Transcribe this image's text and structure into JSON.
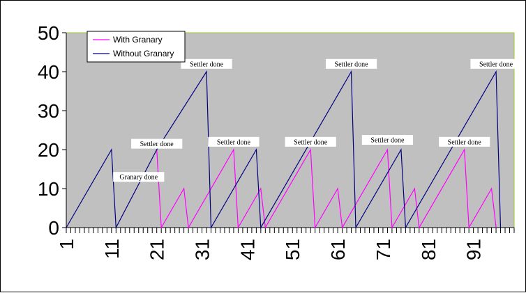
{
  "chart_data": {
    "type": "line",
    "title": "",
    "xlabel": "",
    "ylabel": "",
    "ylim": [
      0,
      50
    ],
    "yticks": [
      0,
      10,
      20,
      30,
      40,
      50
    ],
    "xlim": [
      1,
      100
    ],
    "xtick_labels": [
      "1",
      "11",
      "21",
      "31",
      "41",
      "51",
      "61",
      "71",
      "81",
      "91"
    ],
    "grid": false,
    "legend_position": "top-left",
    "plot_background": "#c0c0c0",
    "plot_border": "#9acd32",
    "series": [
      {
        "name": "With Granary",
        "color": "#ff00ff",
        "points": [
          [
            21,
            20
          ],
          [
            22,
            0
          ],
          [
            27,
            10
          ],
          [
            28,
            0
          ],
          [
            38,
            20
          ],
          [
            39,
            0
          ],
          [
            44,
            10
          ],
          [
            45,
            0
          ],
          [
            55,
            20
          ],
          [
            56,
            0
          ],
          [
            61,
            10
          ],
          [
            62,
            0
          ],
          [
            72,
            20
          ],
          [
            73,
            0
          ],
          [
            78,
            10
          ],
          [
            79,
            0
          ],
          [
            89,
            20
          ],
          [
            90,
            0
          ],
          [
            95,
            10
          ],
          [
            96,
            0
          ]
        ]
      },
      {
        "name": "Without Granary",
        "color": "#000080",
        "points": [
          [
            1,
            0
          ],
          [
            11,
            20
          ],
          [
            12,
            0
          ],
          [
            21,
            20
          ],
          [
            32,
            40
          ],
          [
            33,
            0
          ],
          [
            43,
            20
          ],
          [
            44,
            0
          ],
          [
            64,
            40
          ],
          [
            65,
            0
          ],
          [
            75,
            20
          ],
          [
            76,
            0
          ],
          [
            96,
            40
          ],
          [
            97,
            0
          ]
        ]
      }
    ],
    "annotations": [
      {
        "text": "Settler done",
        "x": 32,
        "y": 42
      },
      {
        "text": "Settler done",
        "x": 64,
        "y": 42
      },
      {
        "text": "Settler done",
        "x": 96,
        "y": 42
      },
      {
        "text": "Settler done",
        "x": 21,
        "y": 21.5
      },
      {
        "text": "Settler done",
        "x": 38,
        "y": 22
      },
      {
        "text": "Settler done",
        "x": 55,
        "y": 22
      },
      {
        "text": "Settler done",
        "x": 72,
        "y": 22.5
      },
      {
        "text": "Settler done",
        "x": 89,
        "y": 22
      },
      {
        "text": "Granary done",
        "x": 17,
        "y": 13
      }
    ]
  }
}
